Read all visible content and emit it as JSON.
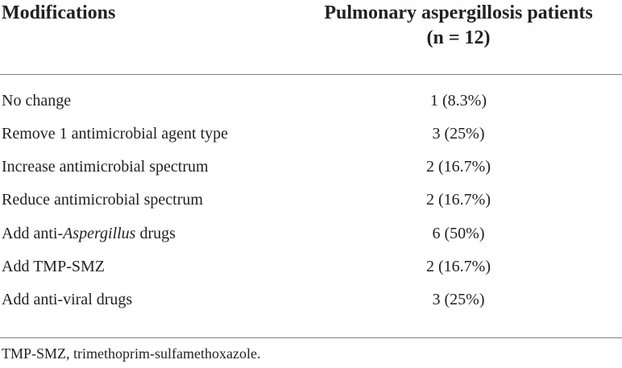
{
  "table": {
    "headers": {
      "left": "Modifications",
      "right_line1": "Pulmonary aspergillosis patients",
      "right_line2": "(n = 12)"
    },
    "rows": [
      {
        "pre": "No change",
        "em": "",
        "post": "",
        "value": "1 (8.3%)"
      },
      {
        "pre": "Remove 1 antimicrobial agent type",
        "em": "",
        "post": "",
        "value": "3 (25%)"
      },
      {
        "pre": "Increase antimicrobial spectrum",
        "em": "",
        "post": "",
        "value": "2 (16.7%)"
      },
      {
        "pre": "Reduce antimicrobial spectrum",
        "em": "",
        "post": "",
        "value": "2 (16.7%)"
      },
      {
        "pre": "Add anti-",
        "em": "Aspergillus",
        "post": " drugs",
        "value": "6 (50%)"
      },
      {
        "pre": "Add TMP-SMZ",
        "em": "",
        "post": "",
        "value": "2 (16.7%)"
      },
      {
        "pre": "Add anti-viral drugs",
        "em": "",
        "post": "",
        "value": "3 (25%)"
      }
    ],
    "footnote": "TMP-SMZ, trimethoprim-sulfamethoxazole."
  }
}
